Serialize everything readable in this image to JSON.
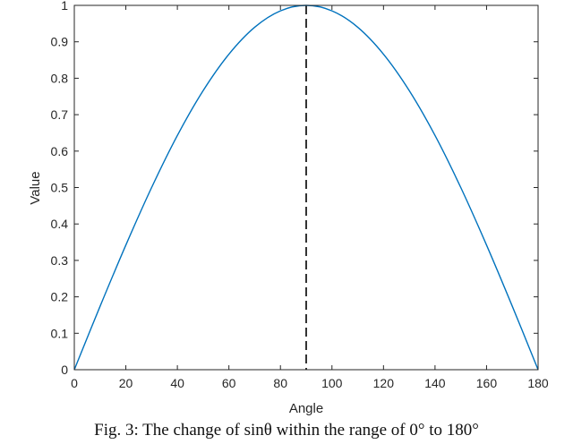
{
  "chart_data": {
    "type": "line",
    "title": "",
    "xlabel": "Angle",
    "ylabel": "Value",
    "xlim": [
      0,
      180
    ],
    "ylim": [
      0,
      1
    ],
    "xticks": [
      0,
      20,
      40,
      60,
      80,
      100,
      120,
      140,
      160,
      180
    ],
    "yticks": [
      0,
      0.1,
      0.2,
      0.3,
      0.4,
      0.5,
      0.6,
      0.7,
      0.8,
      0.9,
      1
    ],
    "grid": false,
    "series": [
      {
        "color": "#0072BD",
        "x": [
          0,
          10,
          20,
          30,
          40,
          50,
          60,
          70,
          80,
          90,
          100,
          110,
          120,
          130,
          140,
          150,
          160,
          170,
          180
        ],
        "y": [
          0,
          0.174,
          0.342,
          0.5,
          0.643,
          0.766,
          0.866,
          0.94,
          0.985,
          1,
          0.985,
          0.94,
          0.866,
          0.766,
          0.643,
          0.5,
          0.342,
          0.174,
          0
        ]
      }
    ],
    "reference_line": {
      "x": 90,
      "style": "dashed",
      "color": "#000000"
    }
  },
  "caption": "Fig. 3: The change of sinθ within the range of 0° to 180°"
}
